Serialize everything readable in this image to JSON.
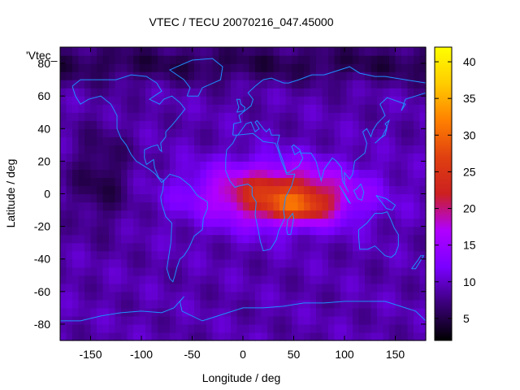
{
  "chart_data": {
    "type": "heatmap",
    "title": "VTEC / TECU 20070216_047.45000",
    "xlabel": "Longitude / deg",
    "ylabel": "Latitude / deg",
    "key_label": "'Vtec_",
    "xlim": [
      -180,
      180
    ],
    "ylim": [
      -90,
      90
    ],
    "xticks": [
      -150,
      -100,
      -50,
      0,
      50,
      100,
      150
    ],
    "yticks": [
      -80,
      -60,
      -40,
      -20,
      0,
      20,
      40,
      60,
      80
    ],
    "colorbar": {
      "range": [
        2,
        42
      ],
      "ticks": [
        5,
        10,
        15,
        20,
        25,
        30,
        35,
        40
      ],
      "palette": [
        "#000000",
        "#3a0078",
        "#7a00ff",
        "#b000ff",
        "#cc2020",
        "#e04010",
        "#ff8000",
        "#ffcc00",
        "#ffff00"
      ]
    },
    "field_features": [
      {
        "label": "background",
        "value": 9
      },
      {
        "label": "equatorial_crest_lon_30_to_90",
        "lat": -8,
        "value": 34
      },
      {
        "label": "equatorial_band_lon_-50_to_120",
        "lat": 0,
        "value": 25
      },
      {
        "label": "northern_polar_low",
        "lat": 80,
        "value": 3
      },
      {
        "label": "pacific_low",
        "lon": -140,
        "lat": 10,
        "value": 4
      }
    ],
    "coastline_color": "#1e90ff"
  }
}
